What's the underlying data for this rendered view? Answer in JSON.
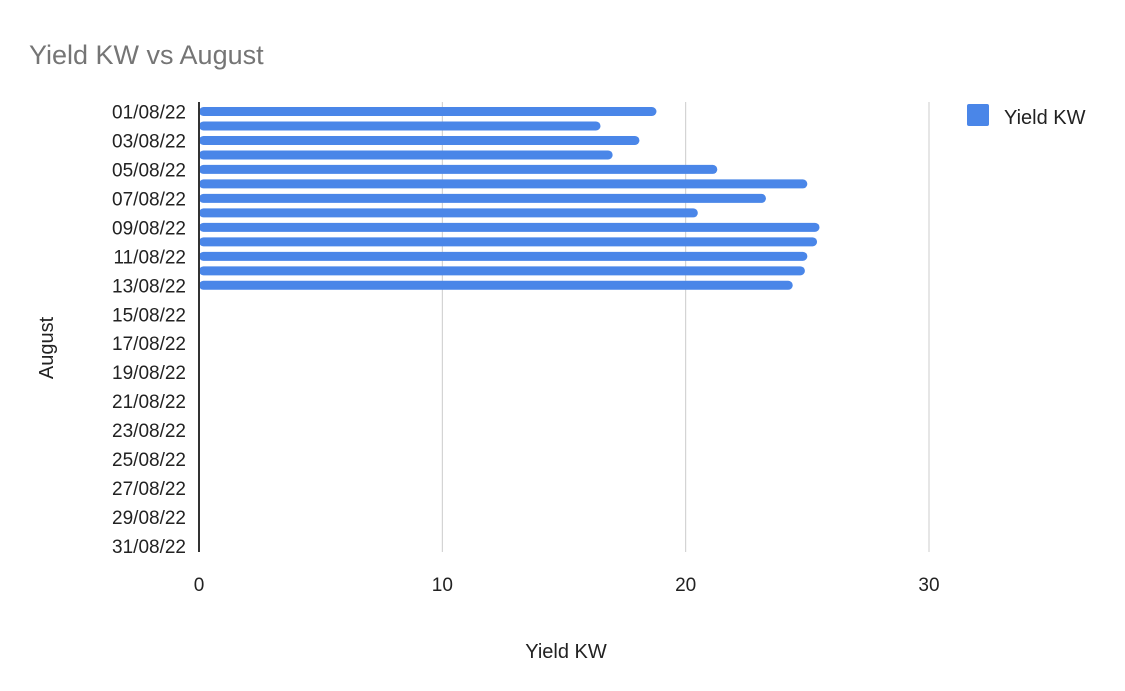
{
  "chart_data": {
    "type": "bar",
    "orientation": "horizontal",
    "title": "Yield KW vs August",
    "xlabel": "Yield KW",
    "ylabel": "August",
    "xlim": [
      0,
      30
    ],
    "x_ticks": [
      "0",
      "10",
      "20",
      "30"
    ],
    "grid": true,
    "legend_position": "top-right",
    "colors": {
      "series": "#4a86e8",
      "title": "#757575",
      "grid": "#cccccc",
      "axis": "#333333"
    },
    "categories": [
      "01/08/22",
      "02/08/22",
      "03/08/22",
      "04/08/22",
      "05/08/22",
      "06/08/22",
      "07/08/22",
      "08/08/22",
      "09/08/22",
      "10/08/22",
      "11/08/22",
      "12/08/22",
      "13/08/22",
      "14/08/22",
      "15/08/22",
      "16/08/22",
      "17/08/22",
      "18/08/22",
      "19/08/22",
      "20/08/22",
      "21/08/22",
      "22/08/22",
      "23/08/22",
      "24/08/22",
      "25/08/22",
      "26/08/22",
      "27/08/22",
      "28/08/22",
      "29/08/22",
      "30/08/22",
      "31/08/22"
    ],
    "category_tick_labels": [
      "01/08/22",
      "03/08/22",
      "05/08/22",
      "07/08/22",
      "09/08/22",
      "11/08/22",
      "13/08/22",
      "15/08/22",
      "17/08/22",
      "19/08/22",
      "21/08/22",
      "23/08/22",
      "25/08/22",
      "27/08/22",
      "29/08/22",
      "31/08/22"
    ],
    "series": [
      {
        "name": "Yield KW",
        "values": [
          18.8,
          16.5,
          18.1,
          17.0,
          21.3,
          25.0,
          23.3,
          20.5,
          25.5,
          25.4,
          25.0,
          24.9,
          24.4,
          null,
          null,
          null,
          null,
          null,
          null,
          null,
          null,
          null,
          null,
          null,
          null,
          null,
          null,
          null,
          null,
          null,
          null
        ]
      }
    ]
  }
}
